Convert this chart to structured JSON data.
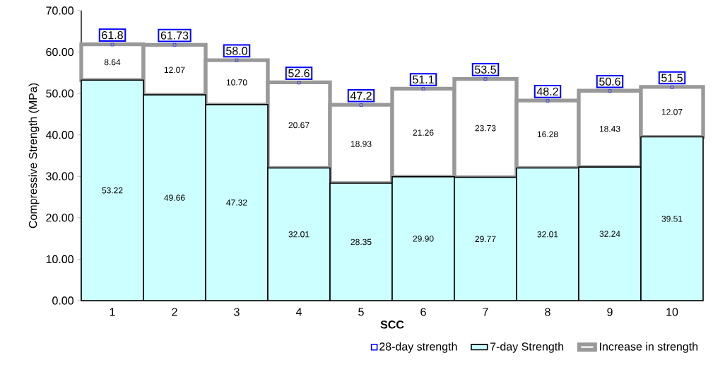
{
  "chart_data": {
    "type": "bar",
    "stacked": true,
    "xlabel": "SCC",
    "ylabel": "Compressive Strength (MPa)",
    "categories": [
      "1",
      "2",
      "3",
      "4",
      "5",
      "6",
      "7",
      "8",
      "9",
      "10"
    ],
    "series": [
      {
        "name": "28-day strength",
        "type": "scatter",
        "marker": "square",
        "color": "#0000ff",
        "x": [
          "1",
          "2",
          "3",
          "4",
          "5",
          "6",
          "7",
          "8",
          "9",
          "10"
        ],
        "values": [
          61.8,
          61.73,
          58.0,
          52.6,
          47.2,
          51.1,
          53.5,
          48.2,
          50.6,
          51.5
        ],
        "value_labels": [
          "61.8",
          "61.73",
          "58.0",
          "52.6",
          "47.2",
          "51.1",
          "53.5",
          "48.2",
          "50.6",
          "51.5"
        ]
      },
      {
        "name": "7-day Strength",
        "color": "#ccffff",
        "values": [
          53.22,
          49.66,
          47.32,
          32.01,
          28.35,
          29.9,
          29.77,
          32.01,
          32.24,
          39.51
        ],
        "value_labels": [
          "53.22",
          "49.66",
          "47.32",
          "32.01",
          "28.35",
          "29.90",
          "29.77",
          "32.01",
          "32.24",
          "39.51"
        ]
      },
      {
        "name": "Increase in strength",
        "color": "#ffffff",
        "values": [
          8.64,
          12.07,
          10.7,
          20.67,
          18.93,
          21.26,
          23.73,
          16.28,
          18.43,
          12.07
        ],
        "value_labels": [
          "8.64",
          "12.07",
          "10.70",
          "20.67",
          "18.93",
          "21.26",
          "23.73",
          "16.28",
          "18.43",
          "12.07"
        ]
      }
    ],
    "ylim": [
      0,
      70
    ],
    "yticks": [
      {
        "value": 0,
        "label": "0.00"
      },
      {
        "value": 10,
        "label": "10.00"
      },
      {
        "value": 20,
        "label": "20.00"
      },
      {
        "value": 30,
        "label": "30.00"
      },
      {
        "value": 40,
        "label": "40.00"
      },
      {
        "value": 50,
        "label": "50.00"
      },
      {
        "value": 60,
        "label": "60.00"
      },
      {
        "value": 70,
        "label": "70.00"
      }
    ],
    "grid": false,
    "legend": "bottom right"
  }
}
